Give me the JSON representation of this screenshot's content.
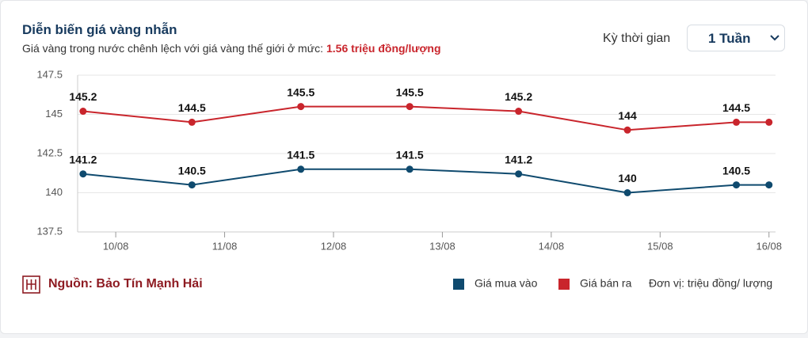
{
  "header": {
    "title": "Diễn biến giá vàng nhẫn",
    "subtitle": "Giá vàng trong nước chênh lệch với giá vàng thế giới ở mức:",
    "subtitle_highlight": "1.56 triệu đồng/lượng",
    "period_label": "Kỳ thời gian",
    "period_value": "1 Tuần"
  },
  "footer": {
    "source": "Nguồn: Bảo Tín Mạnh Hải",
    "unit": "Đơn vị: triệu đồng/ lượng"
  },
  "chart_data": {
    "type": "line",
    "x": [
      9.7,
      10.7,
      11.7,
      12.7,
      13.7,
      14.7,
      15.7,
      16.0
    ],
    "xlim": [
      9.65,
      16.06
    ],
    "xticks": [
      {
        "value": 10,
        "label": "10/08"
      },
      {
        "value": 11,
        "label": "11/08"
      },
      {
        "value": 12,
        "label": "12/08"
      },
      {
        "value": 13,
        "label": "13/08"
      },
      {
        "value": 14,
        "label": "14/08"
      },
      {
        "value": 15,
        "label": "15/08"
      },
      {
        "value": 16,
        "label": "16/08"
      }
    ],
    "ylim": [
      137.5,
      147.5
    ],
    "yticks": [
      137.5,
      140,
      142.5,
      145,
      147.5
    ],
    "grid": true,
    "series": [
      {
        "name": "Giá mua vào",
        "color": "#0f4a6e",
        "values": [
          141.2,
          140.5,
          141.5,
          141.5,
          141.2,
          140,
          140.5,
          140.5
        ],
        "value_labels": [
          "141.2",
          "140.5",
          "141.5",
          "141.5",
          "141.2",
          "140",
          "140.5",
          null
        ]
      },
      {
        "name": "Giá bán ra",
        "color": "#c9252c",
        "values": [
          145.2,
          144.5,
          145.5,
          145.5,
          145.2,
          144,
          144.5,
          144.5
        ],
        "value_labels": [
          "145.2",
          "144.5",
          "145.5",
          "145.5",
          "145.2",
          "144",
          "144.5",
          null
        ]
      }
    ]
  }
}
